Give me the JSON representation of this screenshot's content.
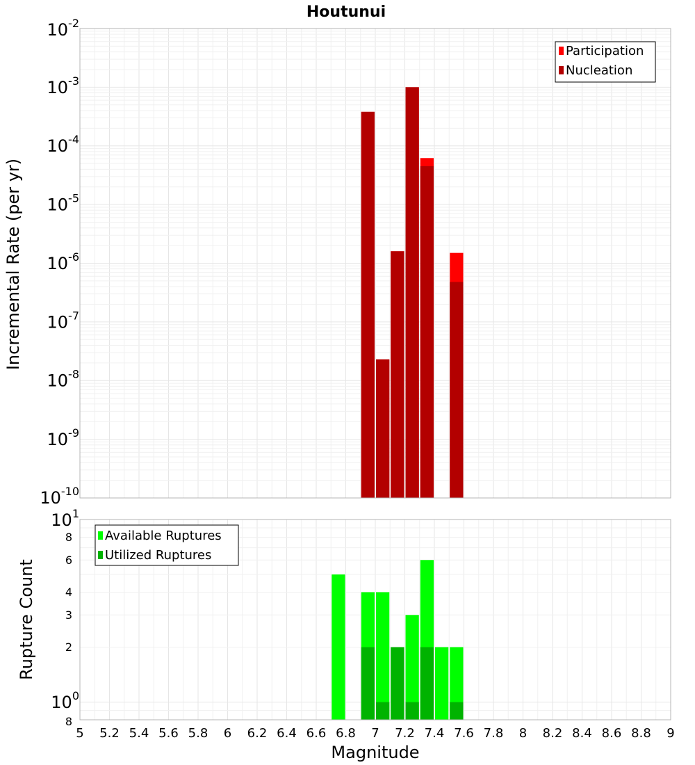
{
  "chart_data": [
    {
      "type": "bar",
      "title": "Houtunui",
      "ylabel": "Incremental Rate (per yr)",
      "xlabel": "",
      "yscale": "log",
      "ylim": [
        1e-10,
        0.01
      ],
      "xlim": [
        5,
        9
      ],
      "bar_width": 0.1,
      "legend": "top-right",
      "grid": true,
      "y_ticks": [
        {
          "base": "10",
          "exp": "-2",
          "value": 0.01
        },
        {
          "base": "10",
          "exp": "-3",
          "value": 0.001
        },
        {
          "base": "10",
          "exp": "-4",
          "value": 0.0001
        },
        {
          "base": "10",
          "exp": "-5",
          "value": 1e-05
        },
        {
          "base": "10",
          "exp": "-6",
          "value": 1e-06
        },
        {
          "base": "10",
          "exp": "-7",
          "value": 1e-07
        },
        {
          "base": "10",
          "exp": "-8",
          "value": 1e-08
        },
        {
          "base": "10",
          "exp": "-9",
          "value": 1e-09
        },
        {
          "base": "10",
          "exp": "-10",
          "value": 1e-10
        }
      ],
      "series": [
        {
          "name": "Participation",
          "color": "#ff0000",
          "x": [
            6.95,
            7.05,
            7.15,
            7.25,
            7.35,
            7.55
          ],
          "values": [
            0.00038,
            2.3e-08,
            1.6e-06,
            0.001,
            6.2e-05,
            1.5e-06
          ]
        },
        {
          "name": "Nucleation",
          "color": "#b30000",
          "x": [
            6.95,
            7.05,
            7.15,
            7.25,
            7.35,
            7.55
          ],
          "values": [
            0.00038,
            2.3e-08,
            1.6e-06,
            0.001,
            4.5e-05,
            4.8e-07
          ]
        }
      ]
    },
    {
      "type": "bar",
      "title": "",
      "ylabel": "Rupture Count",
      "xlabel": "Magnitude",
      "yscale": "log",
      "ylim": [
        0.8,
        10
      ],
      "xlim": [
        5,
        9
      ],
      "bar_width": 0.1,
      "legend": "top-left",
      "grid": true,
      "y_ticks": [
        {
          "base": "10",
          "exp": "1",
          "value": 10
        },
        {
          "base": "8",
          "exp": "",
          "value": 8
        },
        {
          "base": "6",
          "exp": "",
          "value": 6
        },
        {
          "base": "4",
          "exp": "",
          "value": 4
        },
        {
          "base": "3",
          "exp": "",
          "value": 3
        },
        {
          "base": "2",
          "exp": "",
          "value": 2
        },
        {
          "base": "10",
          "exp": "0",
          "value": 1
        },
        {
          "base": "8",
          "exp": "",
          "value": 0.8
        }
      ],
      "x_ticks": [
        "5",
        "5.2",
        "5.4",
        "5.6",
        "5.8",
        "6",
        "6.2",
        "6.4",
        "6.6",
        "6.8",
        "7",
        "7.2",
        "7.4",
        "7.6",
        "7.8",
        "8",
        "8.2",
        "8.4",
        "8.6",
        "8.8",
        "9"
      ],
      "series": [
        {
          "name": "Available Ruptures",
          "color": "#00ff00",
          "x": [
            6.75,
            6.95,
            7.05,
            7.15,
            7.25,
            7.35,
            7.45,
            7.55
          ],
          "values": [
            5,
            4,
            4,
            2,
            3,
            6,
            2,
            2
          ]
        },
        {
          "name": "Utilized Ruptures",
          "color": "#00b300",
          "x": [
            6.95,
            7.05,
            7.15,
            7.25,
            7.35,
            7.55
          ],
          "values": [
            2,
            1,
            2,
            1,
            2,
            1
          ]
        }
      ]
    }
  ]
}
